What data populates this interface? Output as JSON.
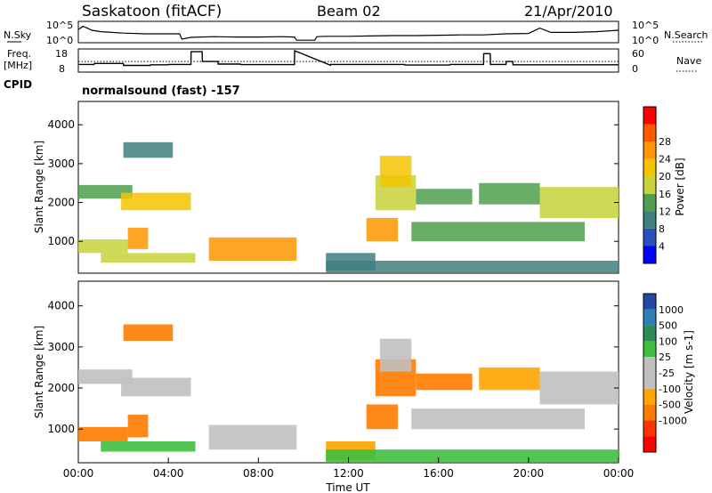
{
  "header": {
    "station": "Saskatoon (fitACF)",
    "beam": "Beam 02",
    "date": "21/Apr/2010"
  },
  "noise_panel": {
    "left_label": "N.Sky",
    "right_label": "N.Search",
    "left_ticks": [
      "10^5",
      "10^0"
    ],
    "right_ticks": [
      "10^5",
      "10^0"
    ]
  },
  "freq_panel": {
    "left_label_1": "Freq.",
    "left_label_2": "[MHz]",
    "right_label": "Nave",
    "left_ticks": [
      "18",
      "8"
    ],
    "right_ticks": [
      "60",
      "0"
    ],
    "cpid_label": "CPID",
    "cpid_value": "normalsound (fast) -157"
  },
  "colors": {
    "power_scale": [
      "#0000ff",
      "#2a4fbf",
      "#3f7f7f",
      "#4f9f4f",
      "#c8d23a",
      "#f5c400",
      "#ff9500",
      "#ff5a00",
      "#ff0000"
    ],
    "velocity_scale": [
      "#2447a8",
      "#2f7fb5",
      "#2e8b57",
      "#3fbf3f",
      "#c0c0c0",
      "#c0c0c0",
      "#ffa500",
      "#ff7b00",
      "#ff3300",
      "#ff0000"
    ]
  },
  "chart_data": [
    {
      "type": "line",
      "panel": "noise",
      "series": [
        {
          "name": "N.Sky",
          "x": [
            0.0,
            0.2,
            0.4,
            0.6,
            1.0,
            2.0,
            3.0,
            4.0,
            4.5,
            4.6,
            5.0,
            6.0,
            7.0,
            8.0,
            9.0,
            9.6,
            9.7,
            10.5,
            10.6,
            11.0,
            12.0,
            13.0,
            14.0,
            15.0,
            16.0,
            17.0,
            18.0,
            19.0,
            20.0,
            20.5,
            21.0,
            22.0,
            23.0,
            24.0
          ],
          "values": [
            3.2,
            4.1,
            3.6,
            3.0,
            2.6,
            2.2,
            2.0,
            2.0,
            2.0,
            0.5,
            1.0,
            1.2,
            1.1,
            1.1,
            1.2,
            1.1,
            0.2,
            0.2,
            1.2,
            1.3,
            1.3,
            1.4,
            1.5,
            1.5,
            1.6,
            1.7,
            1.7,
            2.0,
            2.1,
            3.6,
            2.4,
            2.4,
            2.6,
            3.0
          ]
        }
      ],
      "ylim": [
        0,
        5
      ],
      "xlim": [
        0,
        24
      ]
    },
    {
      "type": "line",
      "panel": "frequency",
      "series": [
        {
          "name": "Freq.",
          "x": [
            0.0,
            0.7,
            0.71,
            2.0,
            2.01,
            3.2,
            3.21,
            4.0,
            4.01,
            5.0,
            5.01,
            5.5,
            5.51,
            6.2,
            6.21,
            7.2,
            7.21,
            9.6,
            9.61,
            11.2,
            11.21,
            14.5,
            14.51,
            16.5,
            16.51,
            18.0,
            18.01,
            18.3,
            18.31,
            19.0,
            19.01,
            19.3,
            19.31,
            24.0
          ],
          "values": [
            11,
            11,
            11.5,
            11.5,
            10.5,
            10.5,
            10.8,
            10.8,
            11.0,
            11.0,
            17.5,
            17.5,
            12.5,
            12.5,
            11.2,
            11.2,
            10.9,
            10.9,
            18.0,
            10.6,
            11.0,
            11.0,
            10.7,
            10.7,
            11.0,
            11.0,
            16.5,
            16.5,
            11.0,
            11.0,
            12.5,
            12.5,
            10.8,
            10.8
          ]
        },
        {
          "name": "Nave",
          "x": [
            0.0,
            24.0
          ],
          "values": [
            27,
            27
          ]
        }
      ],
      "ylim": [
        8,
        18
      ],
      "y2lim": [
        0,
        60
      ],
      "xlim": [
        0,
        24
      ]
    },
    {
      "type": "heatmap",
      "panel": "power",
      "ylabel": "Slant Range [km]",
      "colorbar_label": "Power [dB]",
      "colorbar_ticks": [
        4,
        8,
        12,
        16,
        20,
        24,
        28
      ],
      "ylim": [
        180,
        4600
      ],
      "yticks": [
        1000,
        2000,
        3000,
        4000
      ],
      "xlim": [
        0,
        24
      ],
      "regions": [
        {
          "t0": 0.0,
          "t1": 2.4,
          "r0": 2100,
          "r1": 2450,
          "level": 0.35
        },
        {
          "t0": 1.9,
          "t1": 5.0,
          "r0": 1800,
          "r1": 2250,
          "level": 0.6
        },
        {
          "t0": 2.0,
          "t1": 4.2,
          "r0": 3150,
          "r1": 3550,
          "level": 0.3
        },
        {
          "t0": 0.0,
          "t1": 2.2,
          "r0": 700,
          "r1": 1050,
          "level": 0.45
        },
        {
          "t0": 2.2,
          "t1": 3.1,
          "r0": 800,
          "r1": 1350,
          "level": 0.75
        },
        {
          "t0": 1.0,
          "t1": 5.2,
          "r0": 450,
          "r1": 700,
          "level": 0.55
        },
        {
          "t0": 5.8,
          "t1": 9.7,
          "r0": 500,
          "r1": 1100,
          "level": 0.7
        },
        {
          "t0": 11.0,
          "t1": 13.2,
          "r0": 250,
          "r1": 700,
          "level": 0.3
        },
        {
          "t0": 12.8,
          "t1": 14.2,
          "r0": 1000,
          "r1": 1600,
          "level": 0.8
        },
        {
          "t0": 13.2,
          "t1": 15.0,
          "r0": 1800,
          "r1": 2700,
          "level": 0.5
        },
        {
          "t0": 13.4,
          "t1": 14.8,
          "r0": 2400,
          "r1": 3200,
          "level": 0.6
        },
        {
          "t0": 15.0,
          "t1": 17.5,
          "r0": 1950,
          "r1": 2350,
          "level": 0.4
        },
        {
          "t0": 14.8,
          "t1": 22.5,
          "r0": 1000,
          "r1": 1500,
          "level": 0.35
        },
        {
          "t0": 17.8,
          "t1": 20.5,
          "r0": 1950,
          "r1": 2500,
          "level": 0.4
        },
        {
          "t0": 20.5,
          "t1": 24.0,
          "r0": 1600,
          "r1": 2400,
          "level": 0.5
        },
        {
          "t0": 11.0,
          "t1": 24.0,
          "r0": 200,
          "r1": 500,
          "level": 0.3
        }
      ]
    },
    {
      "type": "heatmap",
      "panel": "velocity",
      "ylabel": "Slant Range [km]",
      "xlabel": "Time UT",
      "colorbar_label": "Velocity [m s-1]",
      "colorbar_ticks": [
        "1000",
        "500",
        "100",
        "25",
        "-25",
        "-100",
        "-500",
        "-1000"
      ],
      "ylim": [
        180,
        4600
      ],
      "yticks": [
        1000,
        2000,
        3000,
        4000
      ],
      "xlim": [
        0,
        24
      ],
      "xticks": [
        "00:00",
        "04:00",
        "08:00",
        "12:00",
        "16:00",
        "20:00",
        "00:00"
      ],
      "regions": [
        {
          "t0": 0.0,
          "t1": 2.4,
          "r0": 2100,
          "r1": 2450,
          "vel": 0
        },
        {
          "t0": 1.9,
          "t1": 5.0,
          "r0": 1800,
          "r1": 2250,
          "vel": 0
        },
        {
          "t0": 2.0,
          "t1": 4.2,
          "r0": 3150,
          "r1": 3550,
          "vel": -150
        },
        {
          "t0": 0.0,
          "t1": 2.2,
          "r0": 700,
          "r1": 1050,
          "vel": -200
        },
        {
          "t0": 2.2,
          "t1": 3.1,
          "r0": 800,
          "r1": 1350,
          "vel": -300
        },
        {
          "t0": 1.0,
          "t1": 5.2,
          "r0": 450,
          "r1": 700,
          "vel": 60
        },
        {
          "t0": 5.8,
          "t1": 9.7,
          "r0": 500,
          "r1": 1100,
          "vel": 0
        },
        {
          "t0": 11.0,
          "t1": 13.2,
          "r0": 250,
          "r1": 700,
          "vel": -80
        },
        {
          "t0": 12.8,
          "t1": 14.2,
          "r0": 1000,
          "r1": 1600,
          "vel": -300
        },
        {
          "t0": 13.2,
          "t1": 15.0,
          "r0": 1800,
          "r1": 2700,
          "vel": -120
        },
        {
          "t0": 13.4,
          "t1": 14.8,
          "r0": 2400,
          "r1": 3200,
          "vel": 0
        },
        {
          "t0": 15.0,
          "t1": 17.5,
          "r0": 1950,
          "r1": 2350,
          "vel": -150
        },
        {
          "t0": 14.8,
          "t1": 22.5,
          "r0": 1000,
          "r1": 1500,
          "vel": 0
        },
        {
          "t0": 17.8,
          "t1": 20.5,
          "r0": 1950,
          "r1": 2500,
          "vel": -100
        },
        {
          "t0": 20.5,
          "t1": 24.0,
          "r0": 1600,
          "r1": 2400,
          "vel": 0
        },
        {
          "t0": 11.0,
          "t1": 24.0,
          "r0": 200,
          "r1": 500,
          "vel": 60
        }
      ]
    }
  ]
}
